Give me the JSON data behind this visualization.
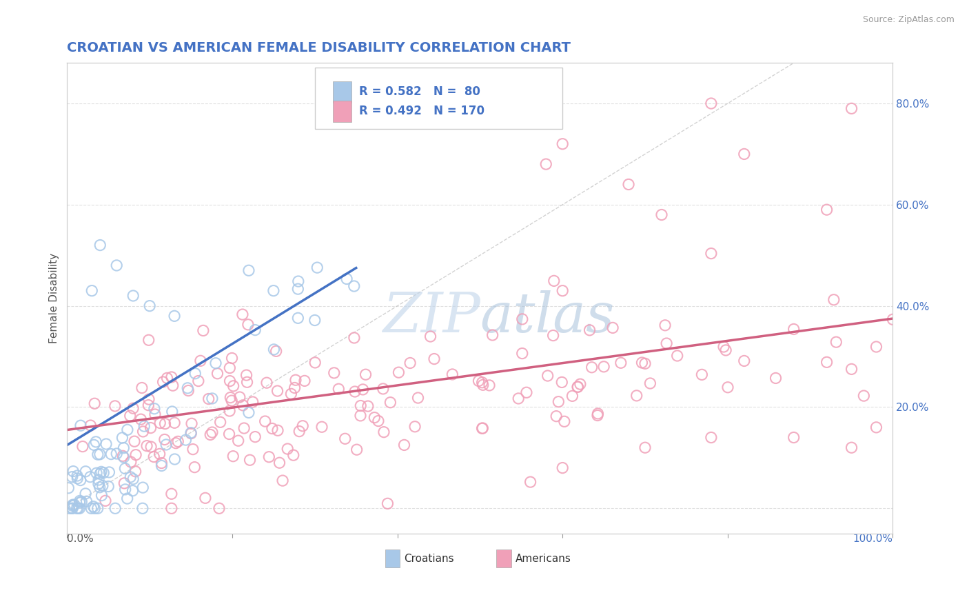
{
  "title": "CROATIAN VS AMERICAN FEMALE DISABILITY CORRELATION CHART",
  "source_text": "Source: ZipAtlas.com",
  "ylabel": "Female Disability",
  "xlim": [
    0.0,
    1.0
  ],
  "ylim": [
    -0.05,
    0.88
  ],
  "x_tick_positions": [
    0.0,
    0.2,
    0.4,
    0.6,
    0.8,
    1.0
  ],
  "y_tick_positions": [
    0.0,
    0.2,
    0.4,
    0.6,
    0.8
  ],
  "y_tick_labels": [
    "",
    "20.0%",
    "40.0%",
    "60.0%",
    "80.0%"
  ],
  "croatian_color": "#a8c8e8",
  "american_color": "#f0a0b8",
  "croatian_line_color": "#4472c4",
  "american_line_color": "#d06080",
  "diag_line_color": "#c0c0c0",
  "watermark_color": "#c8d8e8",
  "title_color": "#4472c4",
  "source_color": "#999999",
  "legend_text_color": "#4472c4",
  "R_croatian": 0.582,
  "N_croatian": 80,
  "R_american": 0.492,
  "N_american": 170,
  "legend_label_croatian": "Croatians",
  "legend_label_american": "Americans",
  "background_color": "#ffffff",
  "grid_color": "#e0e0e0",
  "axis_label_color": "#4472c4"
}
